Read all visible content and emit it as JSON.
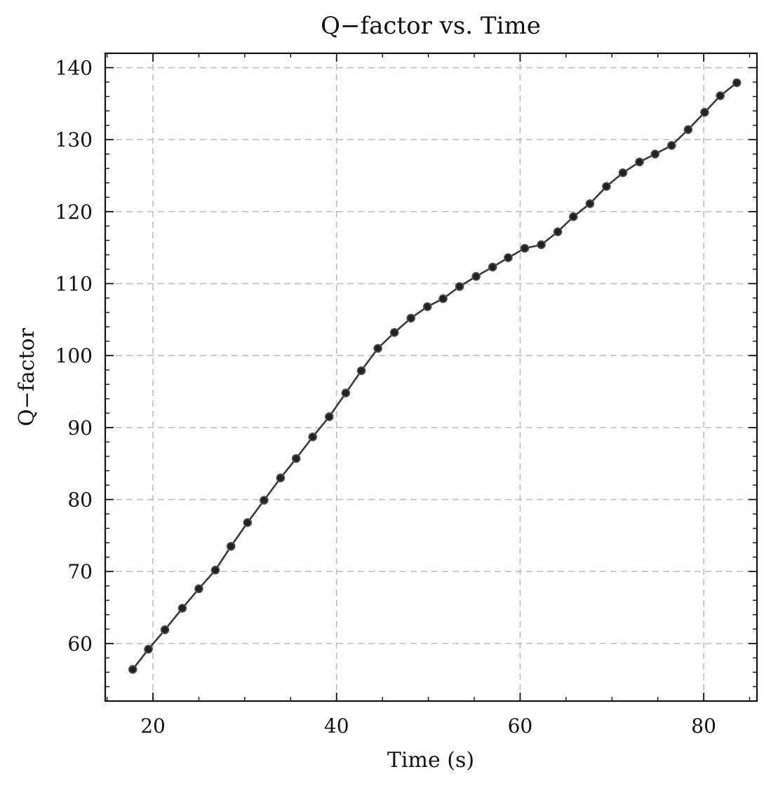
{
  "chart_data": {
    "type": "line",
    "title": "Q−factor vs. Time",
    "xlabel": "Time (s)",
    "ylabel": "Q−factor",
    "xlim": [
      14.8,
      85.8
    ],
    "ylim": [
      52,
      142
    ],
    "xticks": [
      20,
      40,
      60,
      80
    ],
    "yticks": [
      60,
      70,
      80,
      90,
      100,
      110,
      120,
      130,
      140
    ],
    "x_minor_step": 5,
    "y_minor_step": 2,
    "grid": true,
    "grid_style": "dashed",
    "line_color": "#3a3a3a",
    "marker_color": "#222222",
    "series": [
      {
        "x": [
          17.8,
          19.5,
          21.3,
          23.2,
          25.0,
          26.8,
          28.5,
          30.3,
          32.1,
          33.9,
          35.6,
          37.4,
          39.2,
          41.0,
          42.7,
          44.5,
          46.3,
          48.1,
          49.9,
          51.6,
          53.4,
          55.2,
          57.0,
          58.7,
          60.5,
          62.3,
          64.1,
          65.8,
          67.6,
          69.4,
          71.2,
          73.0,
          74.7,
          76.5,
          78.3,
          80.1,
          81.8,
          83.6
        ],
        "y": [
          56.4,
          59.2,
          61.9,
          64.9,
          67.6,
          70.2,
          73.5,
          76.8,
          79.9,
          83.0,
          85.7,
          88.7,
          91.5,
          94.8,
          97.9,
          101.0,
          103.2,
          105.2,
          106.8,
          107.9,
          109.6,
          111.0,
          112.3,
          113.6,
          114.9,
          115.4,
          117.2,
          119.3,
          121.1,
          123.5,
          125.4,
          126.9,
          128.0,
          129.2,
          131.4,
          133.8,
          136.1,
          137.9
        ]
      }
    ]
  }
}
